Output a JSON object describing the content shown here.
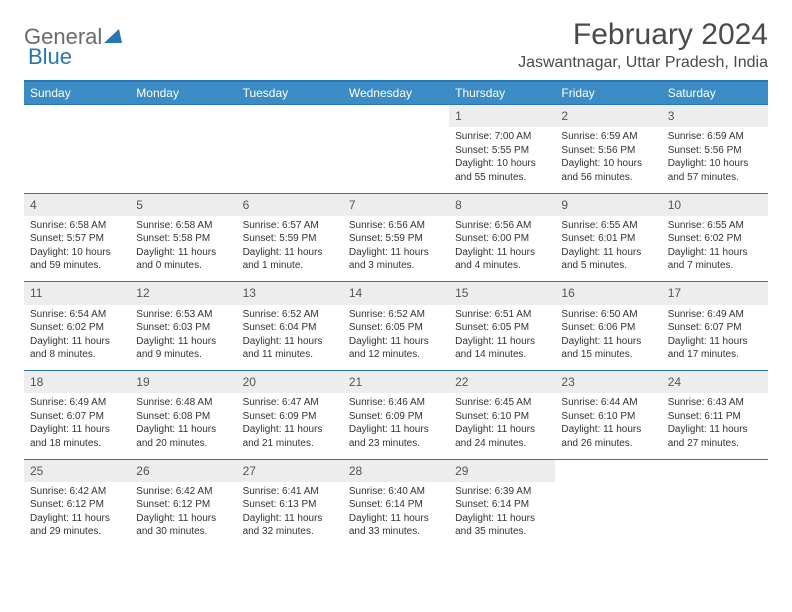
{
  "logo": {
    "word1": "General",
    "word2": "Blue"
  },
  "header": {
    "month_title": "February 2024",
    "location": "Jaswantnagar, Uttar Pradesh, India"
  },
  "colors": {
    "header_bg": "#3b8bc4",
    "header_border": "#2976b6",
    "daynum_bg": "#ededed",
    "text": "#333333",
    "logo_gray": "#6b6b6b",
    "logo_blue": "#2976b6"
  },
  "day_headers": [
    "Sunday",
    "Monday",
    "Tuesday",
    "Wednesday",
    "Thursday",
    "Friday",
    "Saturday"
  ],
  "weeks": [
    [
      null,
      null,
      null,
      null,
      {
        "n": "1",
        "sr": "Sunrise: 7:00 AM",
        "ss": "Sunset: 5:55 PM",
        "dl": "Daylight: 10 hours and 55 minutes."
      },
      {
        "n": "2",
        "sr": "Sunrise: 6:59 AM",
        "ss": "Sunset: 5:56 PM",
        "dl": "Daylight: 10 hours and 56 minutes."
      },
      {
        "n": "3",
        "sr": "Sunrise: 6:59 AM",
        "ss": "Sunset: 5:56 PM",
        "dl": "Daylight: 10 hours and 57 minutes."
      }
    ],
    [
      {
        "n": "4",
        "sr": "Sunrise: 6:58 AM",
        "ss": "Sunset: 5:57 PM",
        "dl": "Daylight: 10 hours and 59 minutes."
      },
      {
        "n": "5",
        "sr": "Sunrise: 6:58 AM",
        "ss": "Sunset: 5:58 PM",
        "dl": "Daylight: 11 hours and 0 minutes."
      },
      {
        "n": "6",
        "sr": "Sunrise: 6:57 AM",
        "ss": "Sunset: 5:59 PM",
        "dl": "Daylight: 11 hours and 1 minute."
      },
      {
        "n": "7",
        "sr": "Sunrise: 6:56 AM",
        "ss": "Sunset: 5:59 PM",
        "dl": "Daylight: 11 hours and 3 minutes."
      },
      {
        "n": "8",
        "sr": "Sunrise: 6:56 AM",
        "ss": "Sunset: 6:00 PM",
        "dl": "Daylight: 11 hours and 4 minutes."
      },
      {
        "n": "9",
        "sr": "Sunrise: 6:55 AM",
        "ss": "Sunset: 6:01 PM",
        "dl": "Daylight: 11 hours and 5 minutes."
      },
      {
        "n": "10",
        "sr": "Sunrise: 6:55 AM",
        "ss": "Sunset: 6:02 PM",
        "dl": "Daylight: 11 hours and 7 minutes."
      }
    ],
    [
      {
        "n": "11",
        "sr": "Sunrise: 6:54 AM",
        "ss": "Sunset: 6:02 PM",
        "dl": "Daylight: 11 hours and 8 minutes."
      },
      {
        "n": "12",
        "sr": "Sunrise: 6:53 AM",
        "ss": "Sunset: 6:03 PM",
        "dl": "Daylight: 11 hours and 9 minutes."
      },
      {
        "n": "13",
        "sr": "Sunrise: 6:52 AM",
        "ss": "Sunset: 6:04 PM",
        "dl": "Daylight: 11 hours and 11 minutes."
      },
      {
        "n": "14",
        "sr": "Sunrise: 6:52 AM",
        "ss": "Sunset: 6:05 PM",
        "dl": "Daylight: 11 hours and 12 minutes."
      },
      {
        "n": "15",
        "sr": "Sunrise: 6:51 AM",
        "ss": "Sunset: 6:05 PM",
        "dl": "Daylight: 11 hours and 14 minutes."
      },
      {
        "n": "16",
        "sr": "Sunrise: 6:50 AM",
        "ss": "Sunset: 6:06 PM",
        "dl": "Daylight: 11 hours and 15 minutes."
      },
      {
        "n": "17",
        "sr": "Sunrise: 6:49 AM",
        "ss": "Sunset: 6:07 PM",
        "dl": "Daylight: 11 hours and 17 minutes."
      }
    ],
    [
      {
        "n": "18",
        "sr": "Sunrise: 6:49 AM",
        "ss": "Sunset: 6:07 PM",
        "dl": "Daylight: 11 hours and 18 minutes."
      },
      {
        "n": "19",
        "sr": "Sunrise: 6:48 AM",
        "ss": "Sunset: 6:08 PM",
        "dl": "Daylight: 11 hours and 20 minutes."
      },
      {
        "n": "20",
        "sr": "Sunrise: 6:47 AM",
        "ss": "Sunset: 6:09 PM",
        "dl": "Daylight: 11 hours and 21 minutes."
      },
      {
        "n": "21",
        "sr": "Sunrise: 6:46 AM",
        "ss": "Sunset: 6:09 PM",
        "dl": "Daylight: 11 hours and 23 minutes."
      },
      {
        "n": "22",
        "sr": "Sunrise: 6:45 AM",
        "ss": "Sunset: 6:10 PM",
        "dl": "Daylight: 11 hours and 24 minutes."
      },
      {
        "n": "23",
        "sr": "Sunrise: 6:44 AM",
        "ss": "Sunset: 6:10 PM",
        "dl": "Daylight: 11 hours and 26 minutes."
      },
      {
        "n": "24",
        "sr": "Sunrise: 6:43 AM",
        "ss": "Sunset: 6:11 PM",
        "dl": "Daylight: 11 hours and 27 minutes."
      }
    ],
    [
      {
        "n": "25",
        "sr": "Sunrise: 6:42 AM",
        "ss": "Sunset: 6:12 PM",
        "dl": "Daylight: 11 hours and 29 minutes."
      },
      {
        "n": "26",
        "sr": "Sunrise: 6:42 AM",
        "ss": "Sunset: 6:12 PM",
        "dl": "Daylight: 11 hours and 30 minutes."
      },
      {
        "n": "27",
        "sr": "Sunrise: 6:41 AM",
        "ss": "Sunset: 6:13 PM",
        "dl": "Daylight: 11 hours and 32 minutes."
      },
      {
        "n": "28",
        "sr": "Sunrise: 6:40 AM",
        "ss": "Sunset: 6:14 PM",
        "dl": "Daylight: 11 hours and 33 minutes."
      },
      {
        "n": "29",
        "sr": "Sunrise: 6:39 AM",
        "ss": "Sunset: 6:14 PM",
        "dl": "Daylight: 11 hours and 35 minutes."
      },
      null,
      null
    ]
  ]
}
